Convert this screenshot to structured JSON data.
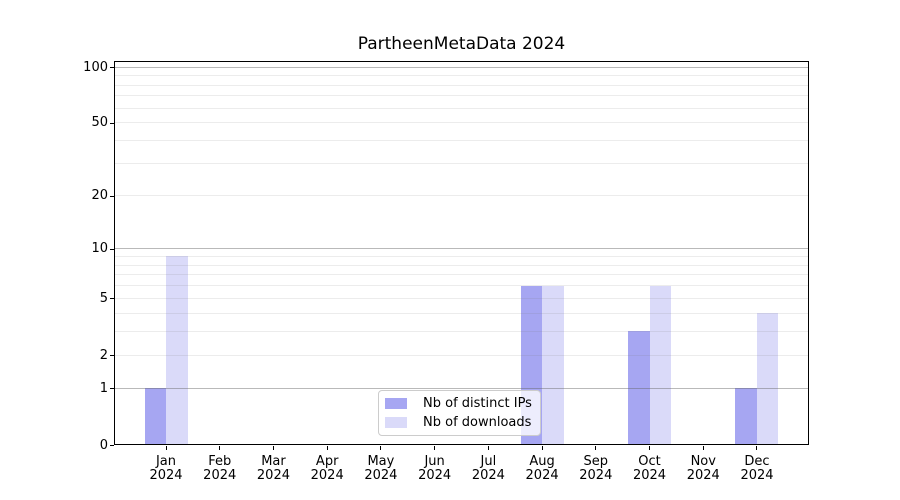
{
  "chart_data": {
    "type": "bar",
    "title": "PartheenMetaData 2024",
    "year_label": "2024",
    "categories": [
      "Jan",
      "Feb",
      "Mar",
      "Apr",
      "May",
      "Jun",
      "Jul",
      "Aug",
      "Sep",
      "Oct",
      "Nov",
      "Dec"
    ],
    "series": [
      {
        "name": "Nb of distinct IPs",
        "color": "#a6a6f2",
        "values": [
          1,
          0,
          0,
          0,
          0,
          0,
          0,
          6,
          0,
          3,
          0,
          1
        ]
      },
      {
        "name": "Nb of downloads",
        "color": "#dadaf9",
        "values": [
          9,
          0,
          0,
          0,
          0,
          0,
          0,
          6,
          0,
          6,
          0,
          4
        ]
      }
    ],
    "yscale": "log1p",
    "ylim": [
      0,
      108
    ],
    "yticks": [
      0,
      1,
      2,
      5,
      10,
      20,
      50,
      100
    ],
    "gridlines": {
      "major": [
        1,
        10,
        100
      ],
      "minor": [
        2,
        3,
        4,
        5,
        6,
        7,
        8,
        9,
        20,
        30,
        40,
        50,
        60,
        70,
        80,
        90
      ]
    },
    "grid": "on",
    "legend_position": "lower center",
    "axis_color": "#000000"
  }
}
